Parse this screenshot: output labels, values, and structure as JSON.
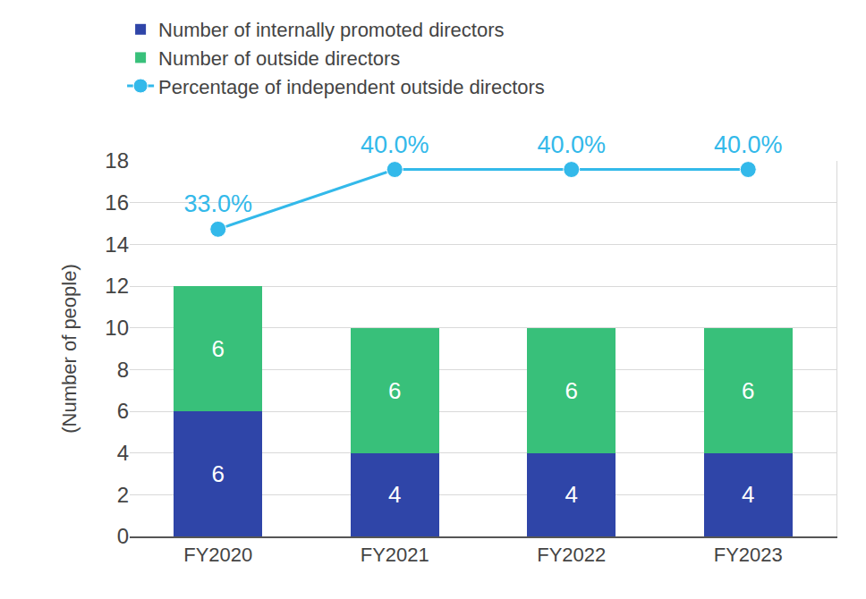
{
  "chart_data": {
    "type": "bar",
    "stacked": true,
    "data_labels": true,
    "grid": true,
    "legend": "top-left",
    "y_label": "(Number of people)",
    "categories": [
      "FY2020",
      "FY2021",
      "FY2022",
      "FY2023"
    ],
    "ylim": [
      0,
      18
    ],
    "yticks": [
      0,
      2,
      4,
      6,
      8,
      10,
      12,
      14,
      16,
      18
    ],
    "y2lim": [
      -3,
      41
    ],
    "y2ticks": [],
    "series": [
      {
        "name": "Number of internally promoted directors",
        "type": "bar",
        "color": "#2f45a8",
        "values": [
          6,
          4,
          4,
          4
        ]
      },
      {
        "name": "Number of outside directors",
        "type": "bar",
        "color": "#38c07a",
        "values": [
          6,
          6,
          6,
          6
        ]
      },
      {
        "name": "Percentage of independent outside directors",
        "type": "line",
        "axis": "y2",
        "marker": "circle",
        "color": "#33b9ea",
        "values": [
          33,
          40,
          40,
          40
        ],
        "value_labels": [
          "33.0%",
          "40.0%",
          "40.0%",
          "40.0%"
        ]
      }
    ]
  }
}
